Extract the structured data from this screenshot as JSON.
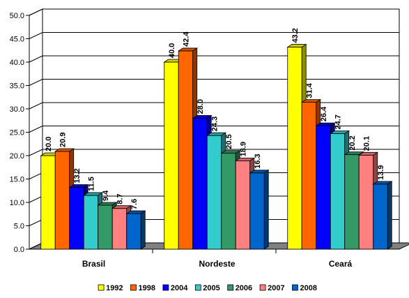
{
  "chart_data": {
    "type": "bar",
    "categories": [
      "Brasil",
      "Nordeste",
      "Ceará"
    ],
    "series": [
      {
        "name": "1992",
        "values": [
          20.0,
          40.0,
          43.2
        ],
        "color": "#ffff00"
      },
      {
        "name": "1998",
        "values": [
          20.9,
          42.4,
          31.4
        ],
        "color": "#ff6600"
      },
      {
        "name": "2004",
        "values": [
          13.2,
          28.0,
          26.4
        ],
        "color": "#0000ff"
      },
      {
        "name": "2005",
        "values": [
          11.5,
          24.3,
          24.7
        ],
        "color": "#33cccc"
      },
      {
        "name": "2006",
        "values": [
          9.4,
          20.5,
          20.2
        ],
        "color": "#339966"
      },
      {
        "name": "2007",
        "values": [
          8.7,
          18.9,
          20.1
        ],
        "color": "#ff8080"
      },
      {
        "name": "2008",
        "values": [
          7.6,
          16.3,
          13.9
        ],
        "color": "#0066cc"
      }
    ],
    "value_labels": [
      [
        "20.0",
        "40.0",
        "43.2"
      ],
      [
        "20.9",
        "42.4",
        "31.4"
      ],
      [
        "13.2",
        "28.0",
        "26.4"
      ],
      [
        "11.5",
        "24.3",
        "24.7"
      ],
      [
        "9.4",
        "20.5",
        "20.2"
      ],
      [
        "8.7",
        "18.9",
        "20.1"
      ],
      [
        "7.6",
        "16.3",
        "13.9"
      ]
    ],
    "yticks": [
      "0.0",
      "5.0",
      "10.0",
      "15.0",
      "20.0",
      "25.0",
      "30.0",
      "35.0",
      "40.0",
      "45.0",
      "50.0"
    ],
    "ylim": [
      0,
      50
    ],
    "title": "",
    "xlabel": "",
    "ylabel": "",
    "grid": true,
    "legend_position": "bottom",
    "style": "3d-clustered-bar"
  }
}
